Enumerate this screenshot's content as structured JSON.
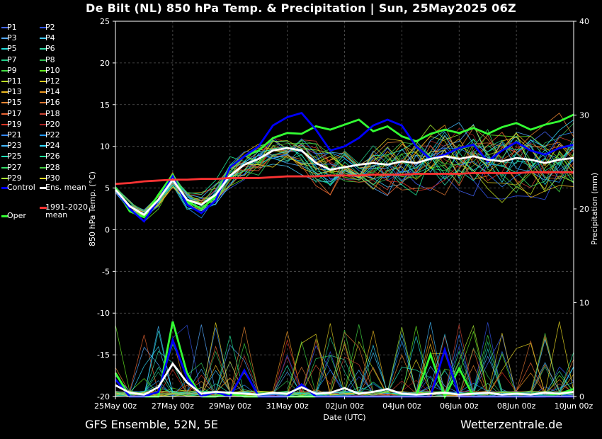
{
  "title": "De Bilt  (NL)  850 hPa Temp. & Precipitation | Sun, 25May2025 06Z",
  "footer": {
    "left": "GFS Ensemble, 52N, 5E",
    "right": "Wetterzentrale.de"
  },
  "chart_data": {
    "type": "line",
    "xlabel": "Date (UTC)",
    "ylabel": "850 hPa Temp. (°C)",
    "y2label": "Precipitation (mm)",
    "ylim": [
      -20,
      25
    ],
    "y2lim": [
      0,
      40
    ],
    "yticks": [
      "25",
      "20",
      "15",
      "10",
      "5",
      "0",
      "-5",
      "-10",
      "-15",
      "-20"
    ],
    "y2ticks": [
      "40",
      "30",
      "20",
      "10",
      "0"
    ],
    "xticks": [
      "25May 00z",
      "27May 00z",
      "29May 00z",
      "31May 00z",
      "02Jun 00z",
      "04Jun 00z",
      "06Jun 00z",
      "08Jun 00z",
      "10Jun 00z"
    ],
    "grid": true,
    "background": "#000000",
    "x_hours": [
      0,
      12,
      24,
      36,
      48,
      60,
      72,
      84,
      96,
      108,
      120,
      132,
      144,
      156,
      168,
      180,
      192,
      204,
      216,
      228,
      240,
      252,
      264,
      276,
      288,
      300,
      312,
      324,
      336,
      348,
      360,
      372,
      384
    ],
    "series": [
      {
        "name": "Oper",
        "color": "#33ff33",
        "temp": [
          5.0,
          2.2,
          1.5,
          4.2,
          6.6,
          3.4,
          2.5,
          4.0,
          7.6,
          8.8,
          9.5,
          11.0,
          11.6,
          11.5,
          12.4,
          12.0,
          12.6,
          13.2,
          11.8,
          12.4,
          11.2,
          10.6,
          11.5,
          12.0,
          11.6,
          12.2,
          11.5,
          12.3,
          12.8,
          12.0,
          12.6,
          13.0,
          13.8
        ],
        "precip": [
          2.5,
          0.0,
          0.0,
          0.0,
          8.0,
          2.5,
          0.0,
          0.0,
          0.3,
          0.0,
          0.0,
          0.0,
          0.0,
          0.0,
          0.0,
          0.0,
          0.0,
          0.0,
          0.0,
          0.0,
          0.0,
          0.0,
          4.5,
          0.0,
          3.0,
          0.0,
          0.0,
          0.0,
          0.0,
          0.0,
          0.0,
          0.3,
          0.8
        ]
      },
      {
        "name": "Control",
        "color": "#0000ff",
        "temp": [
          4.8,
          2.5,
          1.0,
          3.6,
          6.4,
          3.0,
          2.0,
          3.5,
          7.5,
          8.8,
          10.0,
          12.5,
          13.5,
          14.0,
          12.0,
          9.5,
          10.0,
          11.0,
          12.5,
          13.2,
          12.5,
          10.0,
          8.5,
          9.0,
          9.8,
          10.2,
          8.2,
          9.5,
          10.5,
          9.5,
          9.0,
          9.8,
          10.2
        ],
        "precip": [
          1.8,
          0.0,
          0.0,
          0.5,
          6.0,
          2.0,
          0.0,
          0.5,
          0.0,
          2.8,
          0.0,
          0.0,
          0.0,
          1.3,
          0.0,
          0.0,
          0.0,
          0.0,
          0.0,
          0.0,
          0.0,
          0.0,
          0.0,
          5.0,
          0.0,
          0.0,
          0.0,
          0.0,
          0.0,
          0.0,
          0.0,
          0.0,
          0.0
        ]
      },
      {
        "name": "Ens. mean",
        "color": "#ffffff",
        "temp": [
          4.8,
          2.8,
          1.8,
          3.6,
          6.0,
          3.6,
          3.0,
          4.2,
          6.5,
          7.8,
          8.5,
          9.5,
          9.8,
          9.5,
          8.0,
          7.2,
          7.5,
          7.8,
          8.0,
          7.8,
          8.2,
          8.0,
          8.5,
          8.8,
          8.5,
          8.8,
          8.4,
          8.2,
          8.6,
          8.4,
          8.0,
          8.4,
          8.6
        ],
        "precip": [
          1.2,
          0.4,
          0.2,
          1.0,
          3.5,
          1.5,
          0.3,
          0.5,
          0.4,
          0.3,
          0.2,
          0.4,
          0.3,
          1.0,
          0.3,
          0.4,
          0.9,
          0.3,
          0.5,
          0.8,
          0.3,
          0.2,
          0.3,
          0.4,
          0.2,
          0.3,
          0.4,
          0.2,
          0.3,
          0.2,
          0.4,
          0.3,
          0.5
        ]
      },
      {
        "name": "1991-2020 mean",
        "color": "#ff3333",
        "temp": [
          5.5,
          5.6,
          5.8,
          5.9,
          6.0,
          6.0,
          6.1,
          6.1,
          6.2,
          6.2,
          6.2,
          6.3,
          6.4,
          6.4,
          6.4,
          6.5,
          6.5,
          6.5,
          6.6,
          6.6,
          6.6,
          6.7,
          6.7,
          6.7,
          6.7,
          6.8,
          6.8,
          6.8,
          6.8,
          6.9,
          6.9,
          6.9,
          6.9
        ]
      }
    ],
    "members": [
      {
        "name": "P1",
        "color": "#4466ff"
      },
      {
        "name": "P2",
        "color": "#3355ee"
      },
      {
        "name": "P3",
        "color": "#55aaff"
      },
      {
        "name": "P4",
        "color": "#44ccff"
      },
      {
        "name": "P5",
        "color": "#22dddd"
      },
      {
        "name": "P6",
        "color": "#33ddaa"
      },
      {
        "name": "P7",
        "color": "#22cc88"
      },
      {
        "name": "P8",
        "color": "#33bb55"
      },
      {
        "name": "P9",
        "color": "#44dd44"
      },
      {
        "name": "P10",
        "color": "#66ee22"
      },
      {
        "name": "P11",
        "color": "#bbdd22"
      },
      {
        "name": "P12",
        "color": "#ddcc22"
      },
      {
        "name": "P13",
        "color": "#eebb22"
      },
      {
        "name": "P14",
        "color": "#ee9922"
      },
      {
        "name": "P15",
        "color": "#ee8833"
      },
      {
        "name": "P16",
        "color": "#dd7733"
      },
      {
        "name": "P17",
        "color": "#ee6633"
      },
      {
        "name": "P18",
        "color": "#cc4433"
      },
      {
        "name": "P19",
        "color": "#dd3322"
      },
      {
        "name": "P20",
        "color": "#aa2222"
      },
      {
        "name": "P21",
        "color": "#3388ff"
      },
      {
        "name": "P22",
        "color": "#2299ff"
      },
      {
        "name": "P23",
        "color": "#44bbff"
      },
      {
        "name": "P24",
        "color": "#33ddff"
      },
      {
        "name": "P25",
        "color": "#22eebb"
      },
      {
        "name": "P26",
        "color": "#22ee99"
      },
      {
        "name": "P27",
        "color": "#33dd66"
      },
      {
        "name": "P28",
        "color": "#44cc44"
      },
      {
        "name": "P29",
        "color": "#aaee33"
      },
      {
        "name": "P30",
        "color": "#eedd22"
      }
    ]
  }
}
